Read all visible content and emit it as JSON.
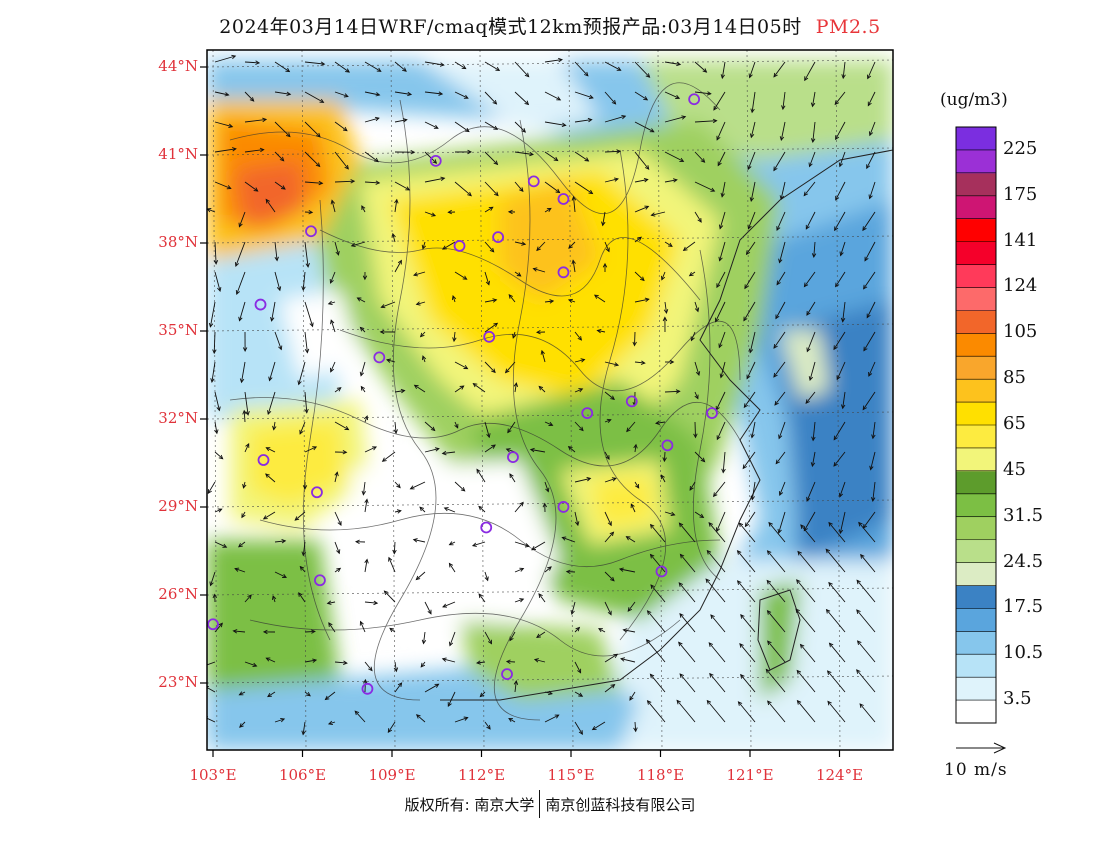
{
  "title": {
    "main": "2024年03月14日WRF/cmaq模式12km预报产品:03月14日05时",
    "pollutant": "PM2.5"
  },
  "axes": {
    "lat_labels": [
      "44°N",
      "41°N",
      "38°N",
      "35°N",
      "32°N",
      "29°N",
      "26°N",
      "23°N"
    ],
    "lon_labels": [
      "103°E",
      "106°E",
      "109°E",
      "112°E",
      "115°E",
      "118°E",
      "121°E",
      "124°E"
    ]
  },
  "colorbar": {
    "unit": "(ug/m3)",
    "colors": [
      "#ffffff",
      "#dff3fb",
      "#b7e3f7",
      "#86c6ec",
      "#5aa5dd",
      "#3b82c4",
      "#dcecc4",
      "#b9df8a",
      "#9fd060",
      "#7cbf44",
      "#5d9c2c",
      "#f2f57a",
      "#fdeb40",
      "#ffe000",
      "#fdc21d",
      "#f9a62c",
      "#fb8a00",
      "#f2662a",
      "#fd6a6a",
      "#ff3a5a",
      "#f5002a",
      "#ff0000",
      "#ce1573",
      "#a6305c",
      "#9b30d6",
      "#7b2ee0"
    ],
    "labels": [
      "3.5",
      "10.5",
      "17.5",
      "24.5",
      "31.5",
      "45",
      "65",
      "85",
      "105",
      "124",
      "141",
      "175",
      "225"
    ]
  },
  "wind_scale": {
    "label": "10 m/s"
  },
  "copyright": {
    "prefix": "版权所有: 南京大学",
    "company": "南京创蓝科技有限公司"
  },
  "stations": [
    {
      "lon": 119.2,
      "lat": 42.9
    },
    {
      "lon": 110.5,
      "lat": 40.8
    },
    {
      "lon": 113.8,
      "lat": 40.1
    },
    {
      "lon": 114.8,
      "lat": 39.5
    },
    {
      "lon": 106.3,
      "lat": 38.4
    },
    {
      "lon": 111.3,
      "lat": 37.9
    },
    {
      "lon": 112.6,
      "lat": 38.2
    },
    {
      "lon": 114.8,
      "lat": 37.0
    },
    {
      "lon": 104.6,
      "lat": 35.9
    },
    {
      "lon": 112.3,
      "lat": 34.8
    },
    {
      "lon": 108.6,
      "lat": 34.1
    },
    {
      "lon": 117.1,
      "lat": 32.6
    },
    {
      "lon": 115.6,
      "lat": 32.2
    },
    {
      "lon": 119.8,
      "lat": 32.2
    },
    {
      "lon": 118.3,
      "lat": 31.1
    },
    {
      "lon": 104.7,
      "lat": 30.6
    },
    {
      "lon": 113.1,
      "lat": 30.7
    },
    {
      "lon": 106.5,
      "lat": 29.5
    },
    {
      "lon": 114.8,
      "lat": 29.0
    },
    {
      "lon": 112.2,
      "lat": 28.3
    },
    {
      "lon": 106.6,
      "lat": 26.5
    },
    {
      "lon": 118.1,
      "lat": 26.8
    },
    {
      "lon": 103.0,
      "lat": 25.0
    },
    {
      "lon": 108.2,
      "lat": 22.8
    },
    {
      "lon": 112.9,
      "lat": 23.3
    }
  ]
}
